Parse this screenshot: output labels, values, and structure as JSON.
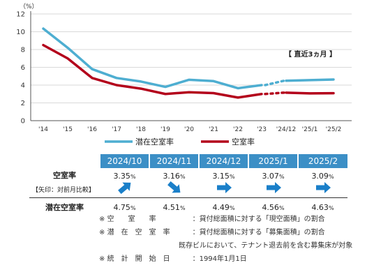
{
  "chart_data": {
    "type": "line",
    "unit_label": "（%）",
    "y_ticks": [
      0,
      2,
      4,
      6,
      8,
      10,
      12
    ],
    "ylim": [
      0,
      12
    ],
    "categories": [
      "'14",
      "'15",
      "'16",
      "'17",
      "'18",
      "'19",
      "'20",
      "'21",
      "'22",
      "'23",
      "'24/12",
      "'25/1",
      "'25/2"
    ],
    "annotation": "【 直近3ヵ月 】",
    "series": [
      {
        "name": "潜在空室率",
        "color": "#4eaed1",
        "annual": [
          10.35,
          8.2,
          5.8,
          4.8,
          4.4,
          3.8,
          4.6,
          4.45,
          3.65,
          4.0
        ],
        "recent": [
          4.49,
          4.56,
          4.63
        ]
      },
      {
        "name": "空室率",
        "color": "#b3001b",
        "annual": [
          8.5,
          7.0,
          4.8,
          4.0,
          3.6,
          3.0,
          3.2,
          3.1,
          2.6,
          3.0
        ],
        "recent": [
          3.15,
          3.07,
          3.09
        ]
      }
    ]
  },
  "table": {
    "months": [
      "2024/10",
      "2024/11",
      "2024/12",
      "2025/1",
      "2025/2"
    ],
    "vacancy_label": "空室率",
    "arrow_note": "【矢印：対前月比較】",
    "latent_label": "潜在空室率",
    "percent_sign": "%",
    "vacancy_values": [
      "3.35",
      "3.16",
      "3.15",
      "3.07",
      "3.09"
    ],
    "latent_values": [
      "4.75",
      "4.51",
      "4.49",
      "4.56",
      "4.63"
    ],
    "arrows": [
      "up-right",
      "down-right",
      "right",
      "right",
      "right"
    ],
    "arrow_color": "#1a7fc9"
  },
  "notes": {
    "n1_mark": "※",
    "n1_key": "空　　室　　率",
    "n1_val": "：貸付総面積に対する「現空面積」の割合",
    "n2_mark": "※",
    "n2_key": "潜　在　空　室　率",
    "n2_val": "：貸付総面積に対する「募集面積」の割合",
    "n2_extra": "既存ビルにおいて、テナント退去前を含む募集床が対象",
    "n3_mark": "※",
    "n3_key": "統　計　開　始　日",
    "n3_val": "：1994年1月1日"
  }
}
